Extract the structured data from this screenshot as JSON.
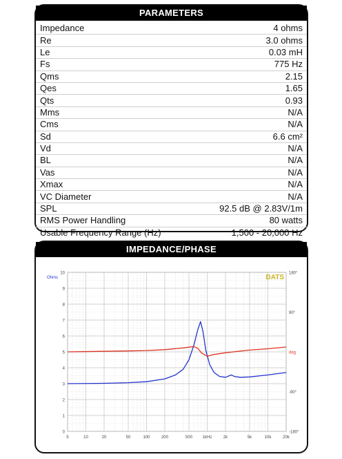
{
  "parameters": {
    "title": "PARAMETERS",
    "rows": [
      {
        "label": "Impedance",
        "value": "4 ohms"
      },
      {
        "label": "Re",
        "value": "3.0 ohms"
      },
      {
        "label": "Le",
        "value": "0.03 mH"
      },
      {
        "label": "Fs",
        "value": "775 Hz"
      },
      {
        "label": "Qms",
        "value": "2.15"
      },
      {
        "label": "Qes",
        "value": "1.65"
      },
      {
        "label": "Qts",
        "value": "0.93"
      },
      {
        "label": "Mms",
        "value": "N/A"
      },
      {
        "label": "Cms",
        "value": "N/A"
      },
      {
        "label": "Sd",
        "value": "6.6 cm²"
      },
      {
        "label": "Vd",
        "value": "N/A"
      },
      {
        "label": "BL",
        "value": "N/A"
      },
      {
        "label": "Vas",
        "value": "N/A"
      },
      {
        "label": "Xmax",
        "value": "N/A"
      },
      {
        "label": "VC Diameter",
        "value": "N/A"
      },
      {
        "label": "SPL",
        "value": "92.5 dB @ 2.83V/1m"
      },
      {
        "label": "RMS Power Handling",
        "value": "80 watts"
      },
      {
        "label": "Usable Frequency Range (Hz)",
        "value": "1,500 - 20,000 Hz"
      }
    ]
  },
  "impedance_panel": {
    "title": "IMPEDANCE/PHASE",
    "brand": "DATS"
  },
  "chart_data": {
    "type": "line",
    "x_scale": "log",
    "xlim": [
      5,
      20000
    ],
    "ylim": [
      0,
      10
    ],
    "y2lim": [
      -180,
      180
    ],
    "grid": true,
    "left_axis_label": "Ohms",
    "right_axis_label": "deg",
    "x_ticks": [
      {
        "v": 5,
        "label": "5"
      },
      {
        "v": 10,
        "label": "10"
      },
      {
        "v": 20,
        "label": "20"
      },
      {
        "v": 50,
        "label": "50"
      },
      {
        "v": 100,
        "label": "100"
      },
      {
        "v": 200,
        "label": "200"
      },
      {
        "v": 500,
        "label": "500"
      },
      {
        "v": 1000,
        "label": "1kHz"
      },
      {
        "v": 2000,
        "label": "2k"
      },
      {
        "v": 5000,
        "label": "5k"
      },
      {
        "v": 10000,
        "label": "10k"
      },
      {
        "v": 20000,
        "label": "20k"
      }
    ],
    "y_ticks": [
      {
        "v": 0,
        "label": "0"
      },
      {
        "v": 1,
        "label": "1"
      },
      {
        "v": 2,
        "label": "2"
      },
      {
        "v": 3,
        "label": "3"
      },
      {
        "v": 4,
        "label": "4"
      },
      {
        "v": 5,
        "label": "5"
      },
      {
        "v": 6,
        "label": "6"
      },
      {
        "v": 7,
        "label": "7"
      },
      {
        "v": 8,
        "label": "8"
      },
      {
        "v": 9,
        "label": "9"
      },
      {
        "v": 10,
        "label": "10"
      }
    ],
    "y2_ticks": [
      {
        "v": 180,
        "label": "180°"
      },
      {
        "v": 90,
        "label": "90°"
      },
      {
        "v": -90,
        "label": "-90°"
      },
      {
        "v": -180,
        "label": "-180°"
      }
    ],
    "series": [
      {
        "color": "#2233cc",
        "axis": "left",
        "points": [
          [
            5,
            3.0
          ],
          [
            20,
            3.02
          ],
          [
            50,
            3.06
          ],
          [
            100,
            3.12
          ],
          [
            200,
            3.3
          ],
          [
            300,
            3.55
          ],
          [
            400,
            3.9
          ],
          [
            500,
            4.5
          ],
          [
            600,
            5.4
          ],
          [
            700,
            6.4
          ],
          [
            775,
            6.9
          ],
          [
            850,
            6.3
          ],
          [
            950,
            5.1
          ],
          [
            1100,
            4.2
          ],
          [
            1300,
            3.7
          ],
          [
            1600,
            3.45
          ],
          [
            2000,
            3.4
          ],
          [
            2500,
            3.55
          ],
          [
            2800,
            3.45
          ],
          [
            3500,
            3.4
          ],
          [
            5000,
            3.42
          ],
          [
            10000,
            3.55
          ],
          [
            20000,
            3.7
          ]
        ]
      },
      {
        "color": "#dd3322",
        "axis": "right",
        "points": [
          [
            5,
            0
          ],
          [
            50,
            2
          ],
          [
            100,
            3
          ],
          [
            200,
            5
          ],
          [
            400,
            9
          ],
          [
            600,
            12
          ],
          [
            700,
            8
          ],
          [
            800,
            -2
          ],
          [
            1000,
            -10
          ],
          [
            1300,
            -6
          ],
          [
            2000,
            -2
          ],
          [
            5000,
            4
          ],
          [
            10000,
            7
          ],
          [
            20000,
            11
          ]
        ]
      }
    ]
  }
}
